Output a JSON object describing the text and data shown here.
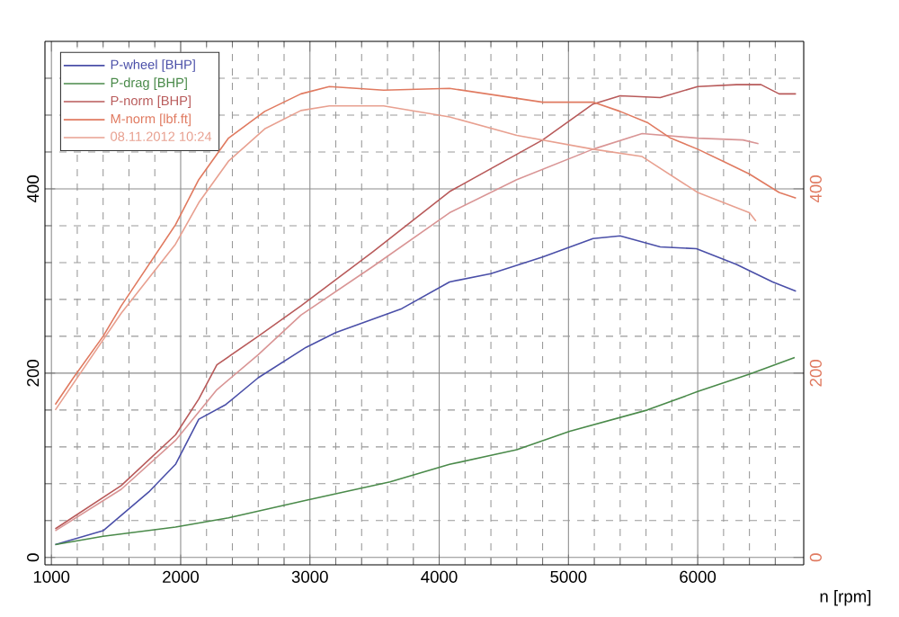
{
  "chart_data": {
    "type": "line",
    "xlabel": "n [rpm]",
    "xlim": [
      950,
      6820
    ],
    "ylim": [
      -8,
      560
    ],
    "y2lim": [
      -8,
      560
    ],
    "xticks": [
      1000,
      {
        "value": 1200,
        "label": null
      },
      {
        "value": 1400,
        "label": null
      },
      {
        "value": 1600,
        "label": null
      },
      {
        "value": 1800,
        "label": null
      },
      2000,
      {
        "value": 2200,
        "label": null
      },
      {
        "value": 2400,
        "label": null
      },
      {
        "value": 2600,
        "label": null
      },
      {
        "value": 2800,
        "label": null
      },
      3000,
      {
        "value": 3200,
        "label": null
      },
      {
        "value": 3400,
        "label": null
      },
      {
        "value": 3600,
        "label": null
      },
      {
        "value": 3800,
        "label": null
      },
      4000,
      {
        "value": 4200,
        "label": null
      },
      {
        "value": 4400,
        "label": null
      },
      {
        "value": 4600,
        "label": null
      },
      {
        "value": 4800,
        "label": null
      },
      5000,
      {
        "value": 5200,
        "label": null
      },
      {
        "value": 5400,
        "label": null
      },
      {
        "value": 5600,
        "label": null
      },
      {
        "value": 5800,
        "label": null
      },
      6000,
      {
        "value": 6200,
        "label": null
      },
      {
        "value": 6400,
        "label": null
      },
      {
        "value": 6600,
        "label": null
      }
    ],
    "yticks": [
      0,
      {
        "value": 40,
        "label": null
      },
      {
        "value": 80,
        "label": null
      },
      {
        "value": 120,
        "label": null
      },
      {
        "value": 160,
        "label": null
      },
      200,
      {
        "value": 240,
        "label": null
      },
      {
        "value": 280,
        "label": null
      },
      {
        "value": 320,
        "label": null
      },
      {
        "value": 360,
        "label": null
      },
      400,
      {
        "value": 440,
        "label": null
      },
      {
        "value": 480,
        "label": null
      },
      {
        "value": 520,
        "label": null
      }
    ],
    "y2ticks": [
      0,
      200,
      400
    ],
    "grid": true,
    "legend": "top left",
    "series": [
      {
        "name": "P-wheel [BHP]",
        "color": "#4a4fa8",
        "x": [
          1030,
          1400,
          1760,
          1960,
          2140,
          2350,
          2600,
          2970,
          3200,
          3710,
          4080,
          4400,
          4800,
          5190,
          5400,
          5710,
          5990,
          6300,
          6580,
          6760
        ],
        "values": [
          14,
          29,
          72,
          101,
          150,
          166,
          195,
          228,
          244,
          270,
          299,
          308,
          326,
          346,
          349,
          337,
          335,
          318,
          299,
          289
        ]
      },
      {
        "name": "P-drag [BHP]",
        "color": "#4a8a4a",
        "x": [
          1030,
          1400,
          1960,
          2370,
          2970,
          3620,
          4080,
          4600,
          5010,
          5610,
          6000,
          6400,
          6750
        ],
        "values": [
          14,
          23,
          33,
          43,
          62,
          82,
          101,
          117,
          137,
          160,
          180,
          199,
          217
        ]
      },
      {
        "name": "P-norm [BHP]",
        "color": "#b85a5a",
        "x": [
          1030,
          1540,
          1960,
          2140,
          2280,
          2600,
          2930,
          3490,
          4080,
          4800,
          5190,
          5400,
          5710,
          6000,
          6300,
          6490,
          6630,
          6760
        ],
        "values": [
          31,
          78,
          133,
          172,
          209,
          240,
          273,
          332,
          397,
          453,
          492,
          501,
          499,
          511,
          513,
          513,
          503,
          503
        ]
      },
      {
        "name": "M-norm [lbf.ft]",
        "color": "#e07a60",
        "axis": "y2",
        "x": [
          1030,
          1170,
          1400,
          1540,
          1960,
          2140,
          2370,
          2650,
          2930,
          3150,
          3570,
          4080,
          4800,
          5190,
          5400,
          5610,
          5790,
          6000,
          6210,
          6400,
          6630,
          6760
        ],
        "values": [
          166,
          195,
          240,
          273,
          361,
          410,
          455,
          484,
          503,
          511,
          507,
          509,
          494,
          494,
          484,
          472,
          455,
          443,
          429,
          416,
          396,
          390
        ]
      },
      {
        "name": "08.11.2012 10:24",
        "color": "#e8a090",
        "axis": "y2",
        "x": [
          1030,
          1540,
          1960,
          2140,
          2370,
          2650,
          2930,
          3150,
          3570,
          4080,
          4600,
          5190,
          5570,
          6000,
          6400,
          6450
        ],
        "values": [
          160,
          265,
          340,
          385,
          430,
          465,
          485,
          490,
          490,
          478,
          458,
          443,
          435,
          396,
          374,
          365
        ]
      },
      {
        "color": "#d99595",
        "x": [
          1030,
          1540,
          1960,
          2280,
          2600,
          2930,
          3490,
          4080,
          4600,
          5190,
          5570,
          6000,
          6350,
          6470
        ],
        "values": [
          29,
          74,
          127,
          182,
          220,
          263,
          316,
          374,
          410,
          443,
          460,
          455,
          453,
          449
        ]
      }
    ]
  }
}
